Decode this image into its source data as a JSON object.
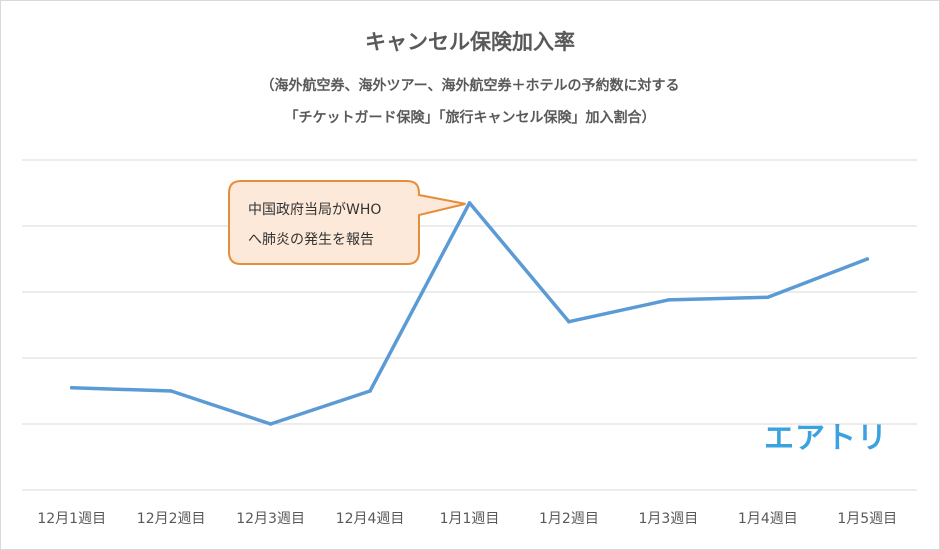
{
  "chart_data": {
    "type": "line",
    "title": "キャンセル保険加入率",
    "subtitle_lines": [
      "（海外航空券、海外ツアー、海外航空券＋ホテルの予約数に対する",
      "「チケットガード保険」「旅行キャンセル保険」加入割合）"
    ],
    "categories": [
      "12月1週目",
      "12月2週目",
      "12月3週目",
      "12月4週目",
      "1月1週目",
      "1月2週目",
      "1月3週目",
      "1月4週目",
      "1月5週目"
    ],
    "series": [
      {
        "values": [
          1.55,
          1.5,
          1.0,
          1.5,
          4.35,
          2.55,
          2.88,
          2.92,
          3.5
        ]
      }
    ],
    "ylim": [
      0,
      5
    ],
    "y_tick_labels_shown": false,
    "grid": true,
    "line_color": "#5b9bd5",
    "annotations": [
      {
        "lines": [
          "中国政府当局がWHO",
          "へ肺炎の発生を報告"
        ],
        "category": "1月1週目",
        "fill_color": "#fde9d9",
        "border_color": "#e68d3a"
      }
    ]
  },
  "brand": {
    "logo_text": "エアトリ",
    "logo_color": "#3aa3df"
  }
}
